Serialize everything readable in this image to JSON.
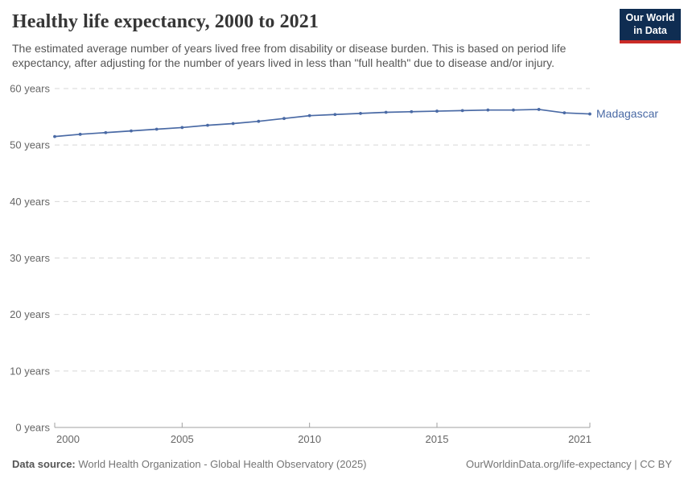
{
  "header": {
    "title": "Healthy life expectancy, 2000 to 2021",
    "subtitle": "The estimated average number of years lived free from disability or disease burden. This is based on period life expectancy, after adjusting for the number of years lived in less than \"full health\" due to disease and/or injury.",
    "logo": {
      "line1": "Our World",
      "line2": "in Data",
      "bg_color": "#0f2d52",
      "accent_color": "#ca2b27"
    }
  },
  "chart_data": {
    "type": "line",
    "title": "Healthy life expectancy, 2000 to 2021",
    "xlabel": "",
    "ylabel": "years",
    "x": [
      2000,
      2001,
      2002,
      2003,
      2004,
      2005,
      2006,
      2007,
      2008,
      2009,
      2010,
      2011,
      2012,
      2013,
      2014,
      2015,
      2016,
      2017,
      2018,
      2019,
      2020,
      2021
    ],
    "series": [
      {
        "name": "Madagascar",
        "color": "#4a6aa5",
        "values": [
          51.5,
          51.9,
          52.2,
          52.5,
          52.8,
          53.1,
          53.5,
          53.8,
          54.2,
          54.7,
          55.2,
          55.4,
          55.6,
          55.8,
          55.9,
          56.0,
          56.1,
          56.2,
          56.2,
          56.3,
          55.7,
          55.5
        ]
      }
    ],
    "xlim": [
      2000,
      2021
    ],
    "ylim": [
      0,
      60
    ],
    "y_ticks": [
      0,
      10,
      20,
      30,
      40,
      50,
      60
    ],
    "y_tick_suffix": " years",
    "x_ticks": [
      2000,
      2005,
      2010,
      2015,
      2021
    ],
    "grid": "horizontal-dashed",
    "legend": "inline-end-label",
    "grid_color": "#d7d7d7",
    "axis_color": "#a0a0a0",
    "tick_label_color": "#666666"
  },
  "footer": {
    "datasource_label": "Data source:",
    "datasource_text": " World Health Organization - Global Health Observatory (2025)",
    "credit": "OurWorldinData.org/life-expectancy | CC BY"
  }
}
